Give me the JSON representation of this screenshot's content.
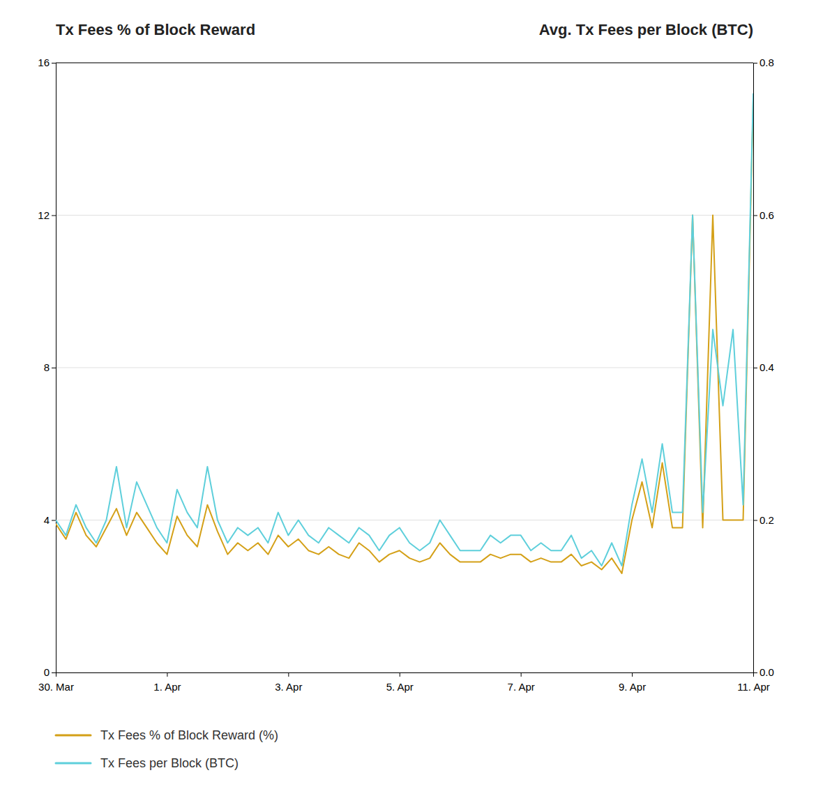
{
  "chart_data": {
    "type": "line",
    "ylabel": "Tx Fees % of Block Reward",
    "y2label": "Avg. Tx Fees per Block (BTC)",
    "x": [
      0,
      1,
      2,
      3,
      4,
      5,
      6,
      7,
      8,
      9,
      10,
      11,
      12,
      13,
      14,
      15,
      16,
      17,
      18,
      19,
      20,
      21,
      22,
      23,
      24,
      25,
      26,
      27,
      28,
      29,
      30,
      31,
      32,
      33,
      34,
      35,
      36,
      37,
      38,
      39,
      40,
      41,
      42,
      43,
      44,
      45,
      46,
      47,
      48,
      49,
      50,
      51,
      52,
      53,
      54,
      55,
      56,
      57,
      58,
      59,
      60,
      61,
      62,
      63,
      64,
      65,
      66,
      67,
      68,
      69
    ],
    "xlim": [
      0,
      69
    ],
    "xticks": [
      {
        "value": 0,
        "label": "30. Mar"
      },
      {
        "value": 11,
        "label": "1. Apr"
      },
      {
        "value": 23,
        "label": "3. Apr"
      },
      {
        "value": 34,
        "label": "5. Apr"
      },
      {
        "value": 46,
        "label": "7. Apr"
      },
      {
        "value": 57,
        "label": "9. Apr"
      },
      {
        "value": 69,
        "label": "11. Apr"
      }
    ],
    "ylim": [
      0,
      16
    ],
    "yticks": [
      0,
      4,
      8,
      12,
      16
    ],
    "y2lim": [
      0,
      0.8
    ],
    "y2ticks": [
      {
        "value": 0,
        "label": "0.0"
      },
      0.2,
      0.4,
      0.6,
      0.8
    ],
    "grid": true,
    "legend": "bottom-left",
    "series": [
      {
        "name": "Tx Fees % of Block Reward (%)",
        "color": "#d4a017",
        "values": [
          3.9,
          3.5,
          4.2,
          3.6,
          3.3,
          3.8,
          4.3,
          3.6,
          4.2,
          3.8,
          3.4,
          3.1,
          4.1,
          3.6,
          3.3,
          4.4,
          3.7,
          3.1,
          3.4,
          3.2,
          3.4,
          3.1,
          3.6,
          3.3,
          3.5,
          3.2,
          3.1,
          3.3,
          3.1,
          3.0,
          3.4,
          3.2,
          2.9,
          3.1,
          3.2,
          3.0,
          2.9,
          3.0,
          3.4,
          3.1,
          2.9,
          2.9,
          2.9,
          3.1,
          3.0,
          3.1,
          3.1,
          2.9,
          3.0,
          2.9,
          2.9,
          3.1,
          2.8,
          2.9,
          2.7,
          3.0,
          2.6,
          4.0,
          5.0,
          3.8,
          5.5,
          3.8,
          3.8,
          12.0,
          3.8,
          12.0,
          4.0,
          4.0,
          4.0,
          15.0
        ]
      },
      {
        "name": "Tx Fees per Block (BTC)",
        "color": "#5ecfdb",
        "axis": "y2",
        "values": [
          0.2,
          0.18,
          0.22,
          0.19,
          0.17,
          0.2,
          0.27,
          0.19,
          0.25,
          0.22,
          0.19,
          0.17,
          0.24,
          0.21,
          0.19,
          0.27,
          0.2,
          0.17,
          0.19,
          0.18,
          0.19,
          0.17,
          0.21,
          0.18,
          0.2,
          0.18,
          0.17,
          0.19,
          0.18,
          0.17,
          0.19,
          0.18,
          0.16,
          0.18,
          0.19,
          0.17,
          0.16,
          0.17,
          0.2,
          0.18,
          0.16,
          0.16,
          0.16,
          0.18,
          0.17,
          0.18,
          0.18,
          0.16,
          0.17,
          0.16,
          0.16,
          0.18,
          0.15,
          0.16,
          0.14,
          0.17,
          0.14,
          0.22,
          0.28,
          0.21,
          0.3,
          0.21,
          0.21,
          0.6,
          0.21,
          0.45,
          0.35,
          0.45,
          0.22,
          0.76
        ]
      }
    ]
  }
}
